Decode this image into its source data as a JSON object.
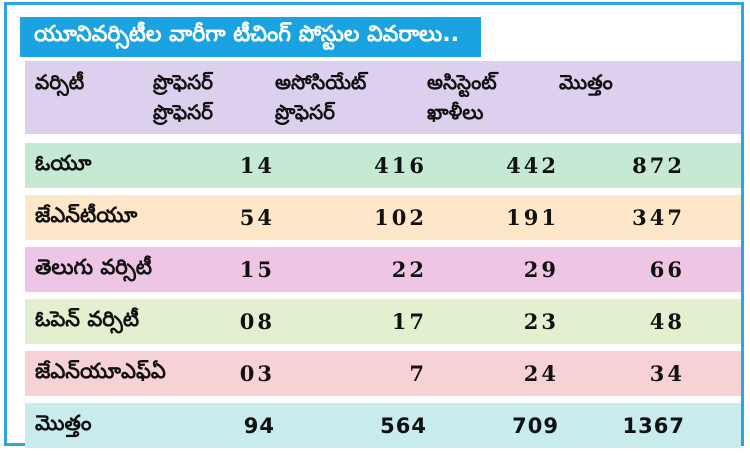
{
  "title": "యూనివర్సిటీల వారీగా టీచింగ్ పోస్టుల వివరాలు..",
  "colors": {
    "frame": "#2aa6e0",
    "title_bg": "#1aa3e0",
    "header_bg": "#ddd0ee"
  },
  "header": {
    "university": "వర్సిటీ",
    "professor": "ప్రొఫెసర్",
    "associate": "అసోసియేట్",
    "associate_2": "ప్రొఫెసర్",
    "assistant": "అసిస్టెంట్",
    "assistant_2": "ఖాళీలు",
    "total": "మొత్తం",
    "professor_2": "ప్రొఫెసర్"
  },
  "rows": [
    {
      "name": "ఓయూ",
      "professor": "14",
      "associate": "416",
      "assistant": "442",
      "total": "872",
      "bg": "#c6e9d3"
    },
    {
      "name": "జేఎన్‌టీయూ",
      "professor": "54",
      "associate": "102",
      "assistant": "191",
      "total": "347",
      "bg": "#fde7c8"
    },
    {
      "name": "తెలుగు వర్సిటీ",
      "professor": "15",
      "associate": "22",
      "assistant": "29",
      "total": "66",
      "bg": "#efc5e6"
    },
    {
      "name": "ఓపెన్ వర్సిటీ",
      "professor": "08",
      "associate": "17",
      "assistant": "23",
      "total": "48",
      "bg": "#e3f0cf"
    },
    {
      "name": "జేఎన్‌యూఎఫ్ఏ",
      "professor": "03",
      "associate": "7",
      "assistant": "24",
      "total": "34",
      "bg": "#f7d2d5"
    }
  ],
  "total_row": {
    "name": "మొత్తం",
    "professor": "94",
    "associate": "564",
    "assistant": "709",
    "total": "1367",
    "bg": "#c8ecec"
  }
}
